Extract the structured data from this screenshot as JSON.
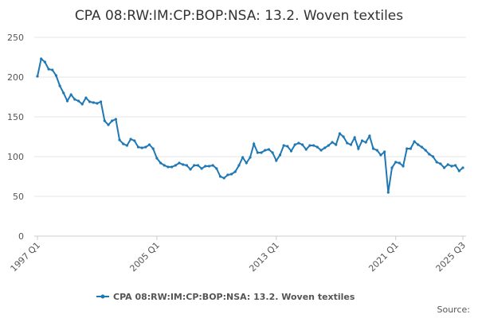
{
  "chart_data": {
    "type": "line",
    "title": "CPA 08:RW:IM:CP:BOP:NSA: 13.2. Woven textiles",
    "source": "Source:",
    "categories": [
      "1997 Q1",
      null,
      null,
      null,
      null,
      null,
      null,
      null,
      null,
      null,
      null,
      null,
      null,
      null,
      null,
      null,
      null,
      null,
      null,
      null,
      null,
      null,
      null,
      null,
      null,
      null,
      null,
      null,
      null,
      null,
      null,
      null,
      "2005 Q1",
      null,
      null,
      null,
      null,
      null,
      null,
      null,
      null,
      null,
      null,
      null,
      null,
      null,
      null,
      null,
      null,
      null,
      null,
      null,
      null,
      null,
      null,
      null,
      null,
      null,
      null,
      null,
      null,
      null,
      null,
      null,
      "2013 Q1",
      null,
      null,
      null,
      null,
      null,
      null,
      null,
      null,
      null,
      null,
      null,
      null,
      null,
      null,
      null,
      null,
      null,
      null,
      null,
      null,
      null,
      null,
      null,
      null,
      null,
      null,
      null,
      null,
      null,
      null,
      null,
      "2021 Q1",
      null,
      null,
      null,
      null,
      null,
      null,
      null,
      null,
      null,
      null,
      null,
      null,
      null,
      null,
      null,
      null,
      null,
      "2025 Q3"
    ],
    "series": [
      {
        "name": "CPA 08:RW:IM:CP:BOP:NSA: 13.2. Woven textiles",
        "color": "#1f78b4",
        "values": [
          201,
          223,
          219,
          210,
          209,
          202,
          189,
          180,
          170,
          178,
          172,
          170,
          166,
          174,
          169,
          168,
          167,
          169,
          145,
          140,
          145,
          147,
          121,
          116,
          114,
          122,
          120,
          112,
          111,
          112,
          115,
          110,
          98,
          92,
          89,
          87,
          87,
          89,
          92,
          90,
          89,
          84,
          89,
          89,
          85,
          88,
          88,
          89,
          85,
          75,
          73,
          77,
          78,
          81,
          89,
          99,
          92,
          99,
          116,
          105,
          105,
          108,
          109,
          105,
          95,
          102,
          114,
          113,
          107,
          115,
          117,
          115,
          109,
          114,
          114,
          112,
          108,
          111,
          114,
          118,
          115,
          129,
          125,
          117,
          115,
          124,
          110,
          120,
          118,
          126,
          110,
          108,
          102,
          106,
          55,
          86,
          93,
          92,
          88,
          110,
          110,
          119,
          115,
          112,
          108,
          103,
          100,
          93,
          91,
          86,
          90,
          88,
          89,
          82,
          86
        ]
      }
    ],
    "ylim": [
      0,
      250
    ],
    "yticks": [
      0,
      50,
      100,
      150,
      200,
      250
    ],
    "grid": true
  }
}
